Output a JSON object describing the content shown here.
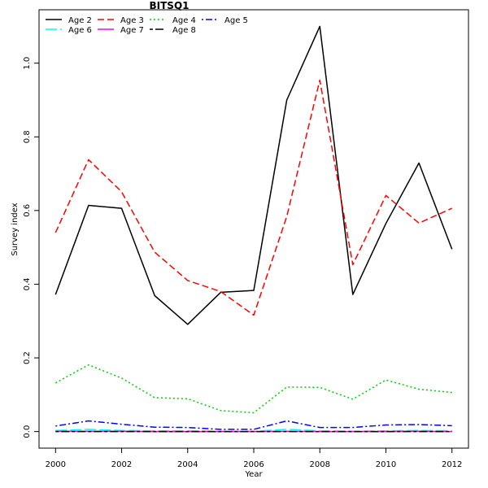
{
  "chart_data": {
    "type": "line",
    "title": "BITSQ1",
    "xlabel": "Year",
    "ylabel": "Survey index",
    "xlim": [
      1999.5,
      2012.5
    ],
    "ylim": [
      -0.045,
      1.145
    ],
    "x_ticks": [
      2000,
      2002,
      2004,
      2006,
      2008,
      2010,
      2012
    ],
    "y_ticks": [
      0.0,
      0.2,
      0.4,
      0.6,
      0.8,
      1.0
    ],
    "x_tick_labels": [
      "2000",
      "2002",
      "2004",
      "2006",
      "2008",
      "2010",
      "2012"
    ],
    "y_tick_labels": [
      "0.0",
      "0.2",
      "0.4",
      "0.6",
      "0.8",
      "1.0"
    ],
    "grid": false,
    "legend_position": "top-left",
    "x": [
      2000,
      2001,
      2002,
      2003,
      2004,
      2005,
      2006,
      2007,
      2008,
      2009,
      2010,
      2011,
      2012
    ],
    "series": [
      {
        "name": "Age 2",
        "color": "#000000",
        "dash": "solid",
        "values": [
          0.372,
          0.614,
          0.606,
          0.369,
          0.291,
          0.378,
          0.383,
          0.9,
          1.1,
          0.372,
          0.565,
          0.729,
          0.495
        ]
      },
      {
        "name": "Age 3",
        "color": "#ff0000",
        "dash": "dashed",
        "values": [
          0.54,
          0.738,
          0.651,
          0.487,
          0.41,
          0.38,
          0.316,
          0.584,
          0.954,
          0.453,
          0.641,
          0.566,
          0.606
        ]
      },
      {
        "name": "Age 4",
        "color": "#00cd00",
        "dash": "dotted",
        "values": [
          0.132,
          0.181,
          0.145,
          0.092,
          0.089,
          0.057,
          0.051,
          0.121,
          0.12,
          0.088,
          0.14,
          0.115,
          0.106
        ]
      },
      {
        "name": "Age 5",
        "color": "#0000ff",
        "dash": "dotdash",
        "values": [
          0.015,
          0.029,
          0.02,
          0.012,
          0.011,
          0.006,
          0.006,
          0.029,
          0.011,
          0.011,
          0.018,
          0.019,
          0.016
        ]
      },
      {
        "name": "Age 6",
        "color": "#00ffff",
        "dash": "longdash",
        "values": [
          0.003,
          0.006,
          0.003,
          0.002,
          0.002,
          0.001,
          0.001,
          0.006,
          0.002,
          0.001,
          0.002,
          0.003,
          0.002
        ]
      },
      {
        "name": "Age 7",
        "color": "#ff00ff",
        "dash": "solid",
        "values": [
          0.001,
          0.001,
          0.001,
          0.0,
          0.0,
          0.0,
          0.0,
          0.001,
          0.0,
          0.0,
          0.0,
          0.001,
          0.0
        ]
      },
      {
        "name": "Age 8",
        "color": "#000000",
        "dash": "twodash",
        "values": [
          0.0,
          0.0,
          0.0,
          0.0,
          0.0,
          0.0,
          0.0,
          0.0,
          0.0,
          0.0,
          0.0,
          0.0,
          0.0
        ]
      }
    ]
  }
}
